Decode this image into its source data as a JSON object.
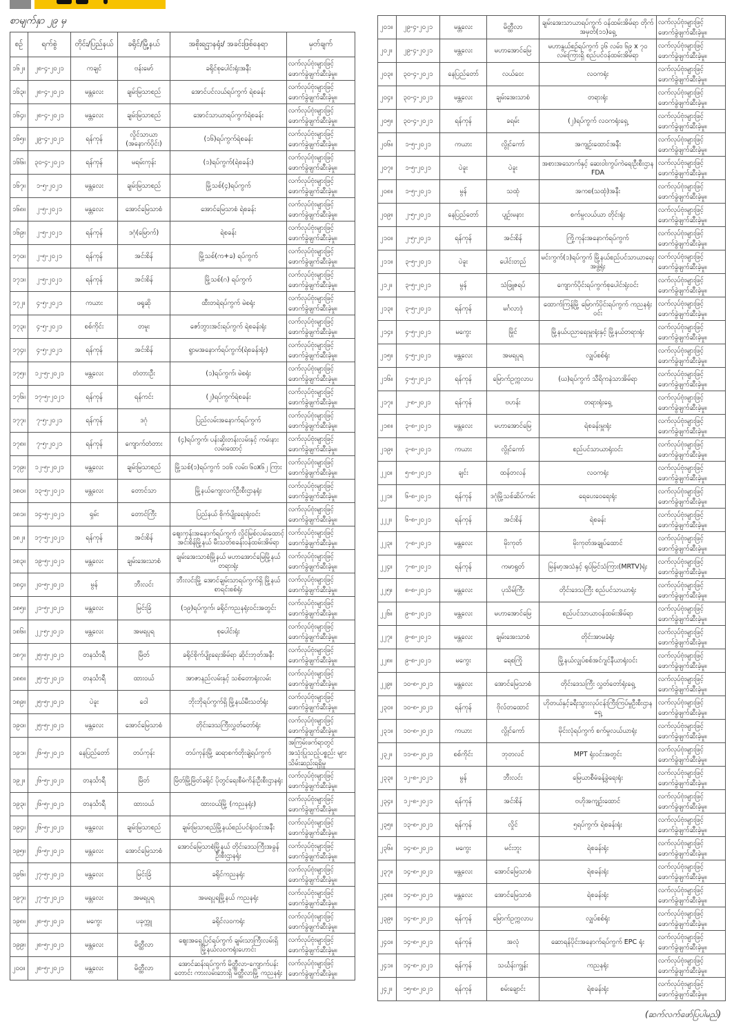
{
  "header": {
    "subtitle": "စာမျက်နှာ ၂၉ မှ",
    "accent_color": "#f7c200"
  },
  "columns": [
    "စဉ်",
    "ရက်စွဲ",
    "တိုင်း/ပြည်နယ်",
    "ခရိုင်/မြို့နယ်",
    "အစိုးရဌာနရုံး/ အခင်းဖြစ်နေရာ",
    "မှတ်ချက်"
  ],
  "remark_default": "လက်လုပ်ဗုံးများဖြင့် ဖောက်ခွဲဖျက်ဆီးခဲ့မှု။",
  "left_rows": [
    [
      "၁၆၂။",
      "၂၈-၄-၂၀၂၁",
      "ကချင်",
      "ဗန်းမော်",
      "ခရိုင်စုပေါင်းရုံးအနီး",
      ""
    ],
    [
      "၁၆၃။",
      "၂၈-၄-၂၀၂၁",
      "မန္တလေး",
      "ချမ်းမြသာစည်",
      "အောင်ပင်လယ်ရပ်ကွက် ရဲစခန်း",
      ""
    ],
    [
      "၁၆၄။",
      "၂၈-၄-၂၀၂၁",
      "မန္တလေး",
      "ချမ်းမြသာစည်",
      "အောင်သာယာရပ်ကွက်ရဲစခန်း",
      ""
    ],
    [
      "၁၆၅။",
      "၂၉-၄-၂၀၂၁",
      "ရန်ကုန်",
      "လှိုင်သာယာ (အနောက်ပိုင်း)",
      "(၁၆)ရပ်ကွက်ရဲစခန်း",
      ""
    ],
    [
      "၁၆၆။",
      "၃၀-၄-၂၀၂၁",
      "ရန်ကုန်",
      "မရမ်းကုန်း",
      "(၁)ရပ်ကွက်(ရဲစခန်း)",
      ""
    ],
    [
      "၁၆၇။",
      "၁-၅-၂၀၂၁",
      "မန္တလေး",
      "ချမ်းမြသာစည်",
      "မြို့သစ်(၄)ရပ်ကွက်",
      ""
    ],
    [
      "၁၆၈။",
      "၂-၅-၂၀၂၁",
      "မန္တလေး",
      "အောင်မြေသာစံ",
      "အောင်မြေသာစံ ရဲစခန်း",
      ""
    ],
    [
      "၁၆၉။",
      "၂-၅-၂၀၂၁",
      "ရန်ကုန်",
      "ဒဂုံ(မြောက်)",
      "ရဲစခန်း",
      ""
    ],
    [
      "၁၇၀။",
      "၂-၅-၂၀၂၁",
      "ရန်ကုန်",
      "အင်းစိန်",
      "မြို့သစ်(က+ခ) ရပ်ကွက်",
      ""
    ],
    [
      "၁၇၁။",
      "၂-၅-၂၀၂၁",
      "ရန်ကုန်",
      "အင်းစိန်",
      "မြို့သစ်(ဂ) ရပ်ကွက်",
      ""
    ],
    [
      "၁၇၂။",
      "၄-၅-၂၀၂၁",
      "ကယား",
      "ဖရူဆို",
      "ထီးတရဲရပ်ကွက် မဲစရုံး",
      ""
    ],
    [
      "၁၇၃။",
      "၄-၅-၂၀၂၁",
      "စစ်ကိုင်း",
      "တမူး",
      "ဇော်ဘွားအင်းရပ်ကွက် ရဲစခန်းရုံး",
      ""
    ],
    [
      "၁၇၄။",
      "၄-၅-၂၀၂၁",
      "ရန်ကုန်",
      "အင်းစိန်",
      "ရွာမအနောက်ရပ်ကွက်(ရဲစခန်းရုံး)",
      ""
    ],
    [
      "၁၇၅။",
      "၁၂-၅-၂၀၂၁",
      "မန္တလေး",
      "တံတားဦး",
      "(၁)ရပ်ကွက်၊ မဲစရုံး",
      ""
    ],
    [
      "၁၇၆။",
      "၁၇-၅-၂၀၂၁",
      "ရန်ကုန်",
      "ရန်ကင်း",
      "(၂)ရပ်ကွက်ရဲစခန်း",
      ""
    ],
    [
      "၁၇၇။",
      "၇-၅-၂၀၂၁",
      "ရန်ကုန်",
      "ဒဂုံ",
      "ပြည်လမ်းအနောက်ရပ်ကွက်",
      ""
    ],
    [
      "၁၇၈။",
      "၇-၅-၂၀၂၁",
      "ရန်ကုန်",
      "ကျောက်တံတား",
      "(၄)ရပ်ကွက်၊ ပန်းဆိုးတန်းလမ်းနှင့် ကမ်းနားလမ်းထောင့်",
      ""
    ],
    [
      "၁၇၉။",
      "၁၂-၅-၂၀၂၁",
      "မန္တလေး",
      "ချမ်းမြသာစည်",
      "မြို့သစ်(၁)ရပ်ကွက် ၁၀၆ လမ်း၊ ၆၀x၆၂ ကြား",
      ""
    ],
    [
      "၁၈၀။",
      "၁၃-၅-၂၀၂၁",
      "မန္တလေး",
      "တောင်သာ",
      "မြို့နယ်ကျေးလက်ဦးစီးဌာနရုံး",
      ""
    ],
    [
      "၁၈၁။",
      "၁၄-၅-၂၀၂၁",
      "ရှမ်း",
      "တောင်ကြီး",
      "ပြည်နယ် စိုက်ပျိုးရေးရုံးဝင်း",
      ""
    ],
    [
      "၁၈၂။",
      "၁၇-၅-၂၀၂၁",
      "ရန်ကုန်",
      "အင်းစိန်",
      "ဈေးကုန်းအနောက်ရပ်ကွက် လှိုင်မြစ်လမ်းထောင့် အင်းစိန်မြို့နယ် မီးသတ်စခန်းဝန်ထမ်းအိမ်ရာ",
      ""
    ],
    [
      "၁၈၃။",
      "၁၉-၅-၂၀၂၁",
      "မန္တလေး",
      "ချမ်းအေးသာစံ",
      "ချမ်းအေးသာစံမြို့နယ် မဟာအောင်မြေမြို့နယ် တရားရုံး",
      ""
    ],
    [
      "၁၈၄။",
      "၂၀-၅-၂၀၂၁",
      "မွန်",
      "ဘီးလင်း",
      "ဘီးလင်းမြို့ အောင်ချမ်းသာရပ်ကွက်ရှိ မြို့နယ်စာရင်းစစ်ရုံး",
      ""
    ],
    [
      "၁၈၅။",
      "၂၁-၅-၂၀၂၁",
      "မန္တလေး",
      "မြင်းခြံ",
      "(၁၉)ရပ်ကွက်၊ ခရိုင်ကညနရုံးဝင်းအတွင်း",
      ""
    ],
    [
      "၁၈၆။",
      "၂၂-၅-၂၀၂၁",
      "မန္တလေး",
      "အမရပူရ",
      "စုပေါင်းရုံး",
      ""
    ],
    [
      "၁၈၇။",
      "၂၅-၅-၂၀၂၁",
      "တနင်္သာရီ",
      "မြိတ်",
      "ခရိုင်စိုက်ပျိုးရေးအိမ်ရာ ဆိုင်းဘုတ်အနီး",
      ""
    ],
    [
      "၁၈၈။",
      "၂၅-၅-၂၀၂၁",
      "တနင်္သာရီ",
      "ထားဝယ်",
      "အာဇာနည်လမ်းနှင့် သစ်တောရုံးလမ်း",
      ""
    ],
    [
      "၁၈၉။",
      "၂၅-၅-၂၀၂၁",
      "ပဲခူး",
      "ဝေါ",
      "ဘိုးဘိုရပ်ကွက်ရှိ မြို့နယ်မီးသတ်ရုံး",
      ""
    ],
    [
      "၁၉၀။",
      "၂၅-၅-၂၀၂၁",
      "မန္တလေး",
      "အောင်မြေသာစံ",
      "တိုင်းဒေသကြီးလွှတ်တော်ရုံး",
      ""
    ],
    [
      "၁၉၁။",
      "၂၆-၅-၂၀၂၁",
      "နေပြည်တော်",
      "တပ်ကုန်း",
      "တပ်ကုန်းမြို့ ဆရာစက်တိုးချဲ့ရပ်ကွက်",
      "အကြမ်းဖက်ရာတွင် အသုံးပြုသည့်ပစ္စည်း များ သိမ်းဆည်းရရှိမှု"
    ],
    [
      "၁၉၂။",
      "၂၆-၅-၂၀၂၁",
      "တနင်္သာရီ",
      "မြိတ်",
      "မြိတ်မြို့မြိတ်ခရိုင် ပိုတွင်ရေးစီမံကိန်းဦးစီးဌာနရုံး",
      ""
    ],
    [
      "၁၉၃။",
      "၂၆-၅-၂၀၂၁",
      "တနင်္သာရီ",
      "ထားဝယ်",
      "ထားဝယ်မြို့ (ကညနရုံး)",
      ""
    ],
    [
      "၁၉၄။",
      "၂၆-၅-၂၀၂၁",
      "မန္တလေး",
      "ချမ်းမြသာစည်",
      "ချမ်းမြသာစည်မြို့နယ်စည်ပင်ရုံးဝင်းအနီး",
      ""
    ],
    [
      "၁၉၅။",
      "၂၆-၅-၂၀၂၁",
      "မန္တလေး",
      "အောင်မြေသာစံ",
      "အောင်မြေသာစံမြို့နယ် တိုင်းဒေသကြီးအခွန်ဦးစီးဌာနရုံး",
      ""
    ],
    [
      "၁၉၆။",
      "၂၇-၅-၂၀၂၁",
      "မန္တလေး",
      "မြင်းခြံ",
      "ခရိုင်ကညနရုံး",
      ""
    ],
    [
      "၁၉၇။",
      "၂၇-၅-၂၀၂၁",
      "မန္တလေး",
      "အမရပူရ",
      "အမရပူရမြို့နယ် ကညနရုံး",
      ""
    ],
    [
      "၁၉၈။",
      "၂၈-၅-၂၀၂၁",
      "မကွေး",
      "ပခုက္ကူ",
      "ခရိုင်လဝကရုံး",
      ""
    ],
    [
      "၁၉၉။",
      "၂၈-၅-၂၀၂၁",
      "မန္တလေး",
      "မိတ္ထီလာ",
      "ဈေးအရှေ့ပြင်ရပ်ကွက် ချမ်းသာကြီးလမ်းရှိ မြို့နယ်လဝကရုံးဟောင်း",
      ""
    ],
    [
      "၂၀၀။",
      "၂၈-၅-၂၀၂၁",
      "မန္တလေး",
      "မိတ္ထီလာ",
      "အောင်ဆန်းရပ်ကွက် မိတ္ထီလာ-ကျောက်ပန်းတောင်း ကားလမ်းဘေးရှိ မိတ္ထီလာမြို့ ကညနရုံး",
      ""
    ]
  ],
  "right_rows": [
    [
      "၂၀၁။",
      "၂၉-၄-၂၀၂၁",
      "မန္တလေး",
      "မိတ္ထီလာ",
      "ချမ်းအေးသာယာရပ်ကွက် ဝန်ထမ်းအိမ်ရာ တိုက်အမှတ်(၁၁)ရှေ့",
      ""
    ],
    [
      "၂၀၂။",
      "၂၉-၄-၂၀၂၁",
      "မန္တလေး",
      "မဟာအောင်မြေ",
      "မဟာနွယ်စဉ်ရပ်ကွက် ၃၆ လမ်း၊ ၆၉ x ၇၀ လမ်းကြားရှိ စည်ပင်ဝန်ထမ်းအိမ်ရာ",
      ""
    ],
    [
      "၂၀၃။",
      "၃၀-၄-၂၀၂၁",
      "နေပြည်တော်",
      "လယ်ဝေး",
      "လဝကရုံး",
      ""
    ],
    [
      "၂၀၄။",
      "၃၀-၄-၂၀၂၁",
      "မန္တလေး",
      "ချမ်းအေးသာစံ",
      "တရားရုံး",
      ""
    ],
    [
      "၂၀၅။",
      "၃၀-၄-၂၀၂၁",
      "ရန်ကုန်",
      "ခရမ်း",
      "(၂)ရပ်ကွက် လဝကရုံးရှေ့",
      ""
    ],
    [
      "၂၀၆။",
      "၁-၅-၂၀၂၁",
      "ကယား",
      "လွိုင်ကော်",
      "အကျဉ်းထောင်အနီး",
      ""
    ],
    [
      "၂၀၇။",
      "၁-၅-၂၀၂၁",
      "ပဲခူး",
      "ပဲခူး",
      "အစားအသောက်နှင့် ဆေးဝါးကွပ်ကဲရေးဦးစီးဌာန FDA",
      ""
    ],
    [
      "၂၀၈။",
      "၁-၅-၂၀၂၁",
      "မွန်",
      "သထုံ",
      "အကစ(သထုံ)အနီး",
      ""
    ],
    [
      "၂၀၉။",
      "၂-၅-၂၀၂၁",
      "နေပြည်တော်",
      "ပျဉ်းမနား",
      "စက်မှုလယ်ယာ တိုင်းရုံး",
      ""
    ],
    [
      "၂၁၀။",
      "၂-၅-၂၀၂၁",
      "ရန်ကုန်",
      "အင်းစိန်",
      "ကြို့ကုန်းအနောက်ရပ်ကွက်",
      ""
    ],
    [
      "၂၁၁။",
      "၃-၅-၂၀၂၁",
      "ပဲခူး",
      "ပေါင်းတည်",
      "မင်းကွက်(၁)ရပ်ကွက် မြို့နယ်စည်ပင်သာယာရေးအဖွဲ့ရုံး",
      ""
    ],
    [
      "၂၁၂။",
      "၃-၅-၂၀၂၁",
      "မွန်",
      "သံဖြူဇရပ်",
      "ကျောက်ပိုင်းရပ်ကွက်စုပေါင်းရုံးဝင်း",
      ""
    ],
    [
      "၂၁၃။",
      "၃-၅-၂၀၂၁",
      "ရန်ကုန်",
      "မင်္ဂလာဒုံ",
      "ထောက်ကြန့်မြို့ မြောက်ပိုင်းရပ်ကွက် ကညနရုံးဝင်း",
      ""
    ],
    [
      "၂၁၄။",
      "၄-၅-၂၀၂၁",
      "မကွေး",
      "မြိုင်",
      "မြို့နယ်ပညာရေးမှူးရုံးနှင့် မြို့နယ်တရားရုံး",
      ""
    ],
    [
      "၂၁၅။",
      "၄-၅-၂၀၂၁",
      "မန္တလေး",
      "အမရပူရ",
      "လျှပ်စစ်ရုံး",
      ""
    ],
    [
      "၂၁၆။",
      "၄-၅-၂၀၂၁",
      "ရန်ကုန်",
      "မြောက်ဥက္ကလာပ",
      "(ဃ)ရပ်ကွက် သီရိကနဲသာအိမ်ရာ",
      ""
    ],
    [
      "၂၁၇။",
      "၂-၈-၂၀၂၁",
      "ရန်ကုန်",
      "ဗဟန်း",
      "တရားရုံးရှေ့",
      ""
    ],
    [
      "၂၁၈။",
      "၃-၈-၂၀၂၁",
      "မန္တလေး",
      "မဟာအောင်မြေ",
      "ရဲစခန်းမှူးရုံး",
      ""
    ],
    [
      "၂၁၉။",
      "၃-၈-၂၀၂၁",
      "ကယား",
      "လွိုင်ကော်",
      "စည်ပင်သာယာရုံးဝင်း",
      ""
    ],
    [
      "၂၂၀။",
      "၅-၈-၂၀၂၁",
      "ချင်း",
      "ထန်တလန်",
      "လဝကရုံး",
      ""
    ],
    [
      "၂၂၁။",
      "၆-၈-၂၀၂၁",
      "ရန်ကုန်",
      "ဒဂုံမြို့သစ်ဆိပ်ကမ်း",
      "ရေပေးဝေရေးရုံး",
      ""
    ],
    [
      "၂၂၂။",
      "၆-၈-၂၀၂၁",
      "ရန်ကုန်",
      "အင်းစိန်",
      "ရဲစခန်း",
      ""
    ],
    [
      "၂၂၃။",
      "၇-၈-၂၀၂၁",
      "မန္တလေး",
      "မိုးကုတ်",
      "မိုးကုတ်အချုပ်ထောင်",
      ""
    ],
    [
      "၂၂၄။",
      "၇-၈-၂၀၂၁",
      "ရန်ကုန်",
      "ကမာရွတ်",
      "မြန်မာ့အသံနှင့် ရုပ်မြင်သံကြား(MRTV)ရုံး",
      ""
    ],
    [
      "၂၂၅။",
      "၈-၈-၂၀၂၁",
      "မန္တလေး",
      "ပုသိမ်ကြီး",
      "တိုင်းဒေသကြီး စည်ပင်သာယာရုံး",
      ""
    ],
    [
      "၂၂၆။",
      "၉-၈-၂၀၂၁",
      "မန္တလေး",
      "မဟာအောင်မြေ",
      "စည်ပင်သာယာဝန်ထမ်းအိမ်ရာ",
      ""
    ],
    [
      "၂၂၇။",
      "၉-၈-၂၀၂၁",
      "မန္တလေး",
      "ချမ်းအေးသာစံ",
      "တိုင်းအာမခံရုံး",
      ""
    ],
    [
      "၂၂၈။",
      "၉-၈-၂၀၂၁",
      "မကွေး",
      "ရေစကြို",
      "မြို့နယ်လျှပ်စစ်အင်ဂျင်နီယာရုံးဝင်း",
      ""
    ],
    [
      "၂၂၉။",
      "၁၀-၈-၂၀၂၁",
      "မန္တလေး",
      "အောင်မြေသာစံ",
      "တိုင်းဒေသကြီး လွှတ်တော်ရုံးရှေ့",
      ""
    ],
    [
      "၂၃၀။",
      "၁၀-၈-၂၀၂၁",
      "ရန်ကုန်",
      "ဗိုလ်တထောင်",
      "ဟိုတယ်နှင့်ခရီးသွားလုပ်ငန်းကြီးကြပ်မှုဦးစီးဌာနရှေ့",
      ""
    ],
    [
      "၂၃၁။",
      "၁၀-၈-၂၀၂၁",
      "ကယား",
      "လွိုင်ကော်",
      "မိုင်းလုံရပ်ကွက် စက်မှုလယ်ယာရုံး",
      ""
    ],
    [
      "၂၃၂။",
      "၁၁-၈-၂၀၂၁",
      "စစ်ကိုင်း",
      "ဘုတလင်",
      "MPT ရုံးဝင်းအတွင်း",
      ""
    ],
    [
      "၂၃၃။",
      "၁၂-၈-၂၀၂၁",
      "မွန်",
      "ဘီးလင်း",
      "မြေယာစီမံခန့်ခွဲရေးရုံး",
      ""
    ],
    [
      "၂၃၄။",
      "၁၂-၈-၂၀၂၁",
      "ရန်ကုန်",
      "အင်းစိန်",
      "ဗဟိုအကျဉ်းထောင်",
      ""
    ],
    [
      "၂၃၅။",
      "၁၃-၈-၂၀၂၁",
      "ရန်ကုန်",
      "လှိုင်",
      "၅ရပ်ကွက်၊ ရဲစခန်းရုံး",
      ""
    ],
    [
      "၂၃၆။",
      "၁၄-၈-၂၀၂၁",
      "မကွေး",
      "မင်းဘူး",
      "ရဲစခန်းရုံး",
      ""
    ],
    [
      "၂၃၇။",
      "၁၄-၈-၂၀၂၁",
      "မန္တလေး",
      "အောင်မြေသာစံ",
      "ရဲစခန်းရုံး",
      ""
    ],
    [
      "၂၃၈။",
      "၁၄-၈-၂၀၂၁",
      "မန္တလေး",
      "အောင်မြေသာစံ",
      "ရဲစခန်းရုံး",
      ""
    ],
    [
      "၂၃၉။",
      "၁၄-၈-၂၀၂၁",
      "ရန်ကုန်",
      "မြောက်ဥက္ကလာပ",
      "လျှပ်စစ်ရုံး",
      ""
    ],
    [
      "၂၄၀။",
      "၁၄-၈-၂၀၂၁",
      "ရန်ကုန်",
      "အလုံ",
      "ဆောရန်ပိုင်းအနောက်ရပ်ကွက် EPC ရုံး",
      ""
    ],
    [
      "၂၄၁။",
      "၁၄-၈-၂၀၂၁",
      "ရန်ကုန်",
      "သင်္ဃန်းကျွန်း",
      "ကညနရုံး",
      ""
    ],
    [
      "၂၄၂။",
      "၁၅-၈-၂၀၂၁",
      "ရန်ကုန်",
      "စမ်းချောင်း",
      "ရဲစခန်းရုံး",
      ""
    ]
  ],
  "footer": "(ဆက်လက်ဖော်ပြပါမည်)"
}
